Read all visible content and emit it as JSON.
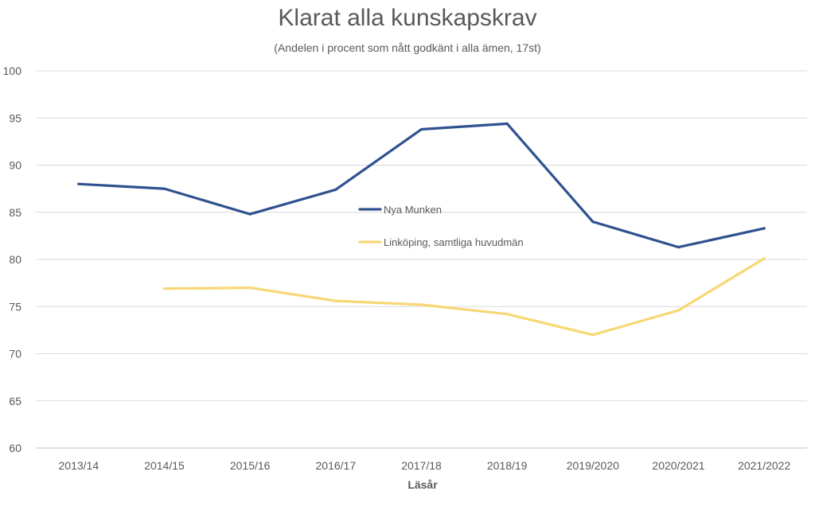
{
  "chart_data": {
    "type": "line",
    "title": "Klarat alla kunskapskrav",
    "subtitle": "(Andelen i procent som nått godkänt i alla ämen, 17st)",
    "xlabel": "Läsår",
    "ylabel": "",
    "categories": [
      "2013/14",
      "2014/15",
      "2015/16",
      "2016/17",
      "2017/18",
      "2018/19",
      "2019/2020",
      "2020/2021",
      "2021/2022"
    ],
    "yticks": [
      60,
      65,
      70,
      75,
      80,
      85,
      90,
      95,
      100
    ],
    "ylim": [
      60,
      100
    ],
    "grid": true,
    "legend_position": "center",
    "series": [
      {
        "name": "Nya Munken",
        "color": "#2f528f",
        "values": [
          88.0,
          87.5,
          84.8,
          87.4,
          93.8,
          94.4,
          84.0,
          81.3,
          83.3
        ]
      },
      {
        "name": "Linköping, samtliga huvudmän",
        "color": "#f7d774",
        "values": [
          null,
          76.9,
          77.0,
          75.6,
          75.2,
          74.2,
          72.0,
          74.6,
          80.1
        ]
      }
    ]
  }
}
